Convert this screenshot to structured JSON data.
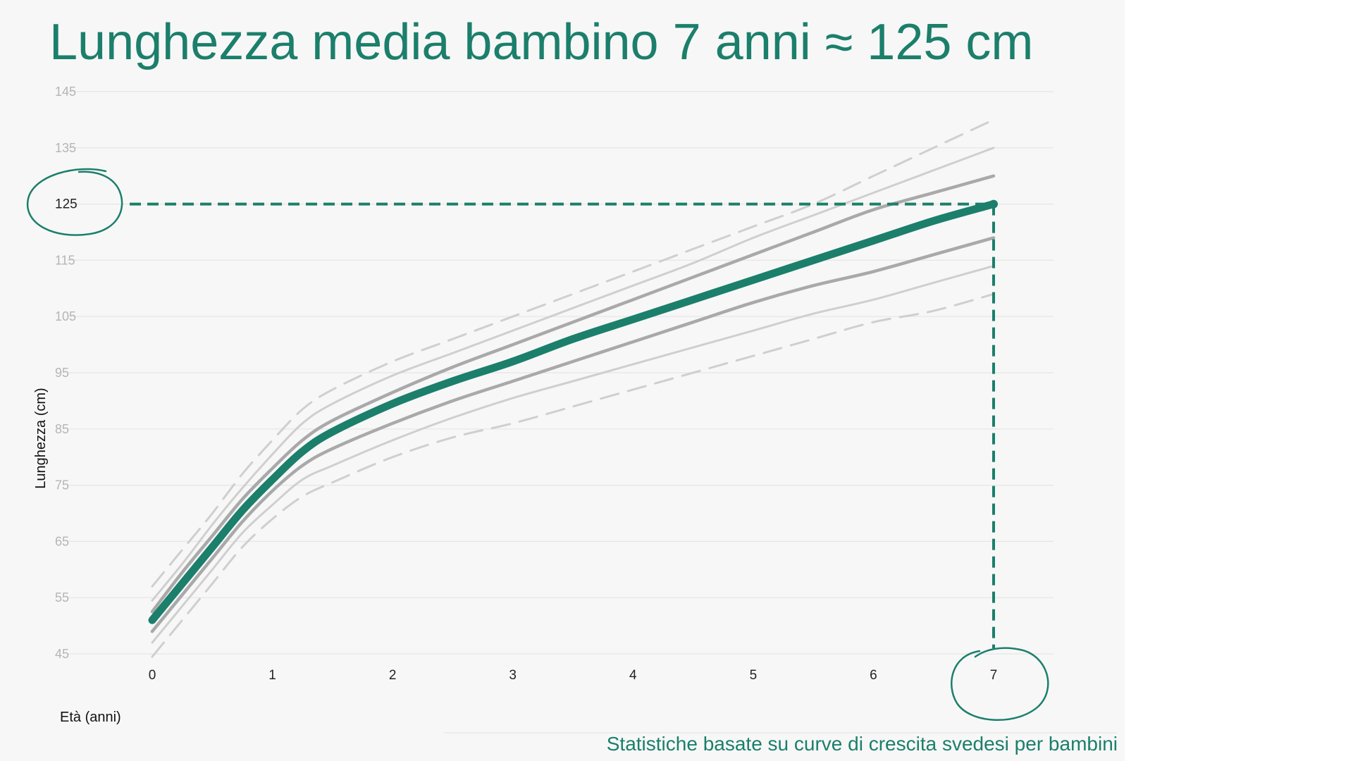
{
  "title": "Lunghezza media bambino 7 anni ≈ 125 cm",
  "caption": "Statistiche basate su curve di crescita svedesi per bambini",
  "colors": {
    "accent": "#1b7f6b",
    "curve_dark": "#a9a9a9",
    "curve_light": "#cfcfcf",
    "grid": "#e6e6e6",
    "background": "#f7f7f7"
  },
  "chart_data": {
    "type": "line",
    "xlabel": "Età (anni)",
    "ylabel": "Lunghezza (cm)",
    "x_ticks": [
      "0",
      "1",
      "2",
      "3",
      "4",
      "5",
      "6",
      "7"
    ],
    "y_ticks": [
      "45",
      "55",
      "65",
      "75",
      "85",
      "95",
      "105",
      "115",
      "125",
      "135",
      "145"
    ],
    "xlim": [
      0,
      7
    ],
    "ylim": [
      45,
      145
    ],
    "grid": true,
    "x": [
      0,
      0.25,
      0.5,
      0.75,
      1,
      1.25,
      1.5,
      2,
      2.5,
      3,
      3.5,
      4,
      4.5,
      5,
      5.5,
      6,
      6.5,
      7
    ],
    "series": [
      {
        "style": "dashed",
        "values": [
          57,
          63.5,
          70,
          77,
          83,
          88.5,
          92,
          97,
          101,
          105,
          109,
          113,
          117,
          121,
          125,
          130,
          135,
          140
        ]
      },
      {
        "style": "light",
        "values": [
          54.5,
          61,
          68,
          74.5,
          80.5,
          86,
          89.5,
          94.5,
          98.5,
          102.5,
          106.5,
          110.5,
          114.5,
          119,
          123,
          127,
          131,
          135
        ]
      },
      {
        "style": "dark",
        "values": [
          52.5,
          59.5,
          66,
          72.5,
          78,
          83,
          86.5,
          91.5,
          96,
          100,
          104,
          108,
          112,
          116,
          120,
          124,
          127,
          130
        ]
      },
      {
        "style": "median",
        "values": [
          51,
          57.5,
          64,
          70.5,
          76,
          81,
          84.5,
          89.5,
          93.5,
          97,
          101,
          104.5,
          108,
          111.5,
          115,
          118.5,
          122,
          125
        ]
      },
      {
        "style": "dark",
        "values": [
          49,
          55.5,
          62,
          68.5,
          74,
          78.5,
          81.5,
          86,
          90,
          93.5,
          97,
          100.5,
          104,
          107.5,
          110.5,
          113,
          116,
          119
        ]
      },
      {
        "style": "light",
        "values": [
          47,
          53.5,
          60,
          66.5,
          71.5,
          76,
          78.5,
          83,
          87,
          90.5,
          93.5,
          96.5,
          99.5,
          102.5,
          105.5,
          108,
          111,
          114
        ]
      },
      {
        "style": "dashed",
        "values": [
          44.5,
          51,
          57.5,
          64,
          69,
          73,
          75.5,
          80,
          83.5,
          86,
          89,
          92,
          95,
          98,
          101,
          104,
          106,
          109
        ]
      }
    ],
    "highlight": {
      "x": 7,
      "y": 125,
      "x_label": "7",
      "y_label": "125"
    }
  }
}
